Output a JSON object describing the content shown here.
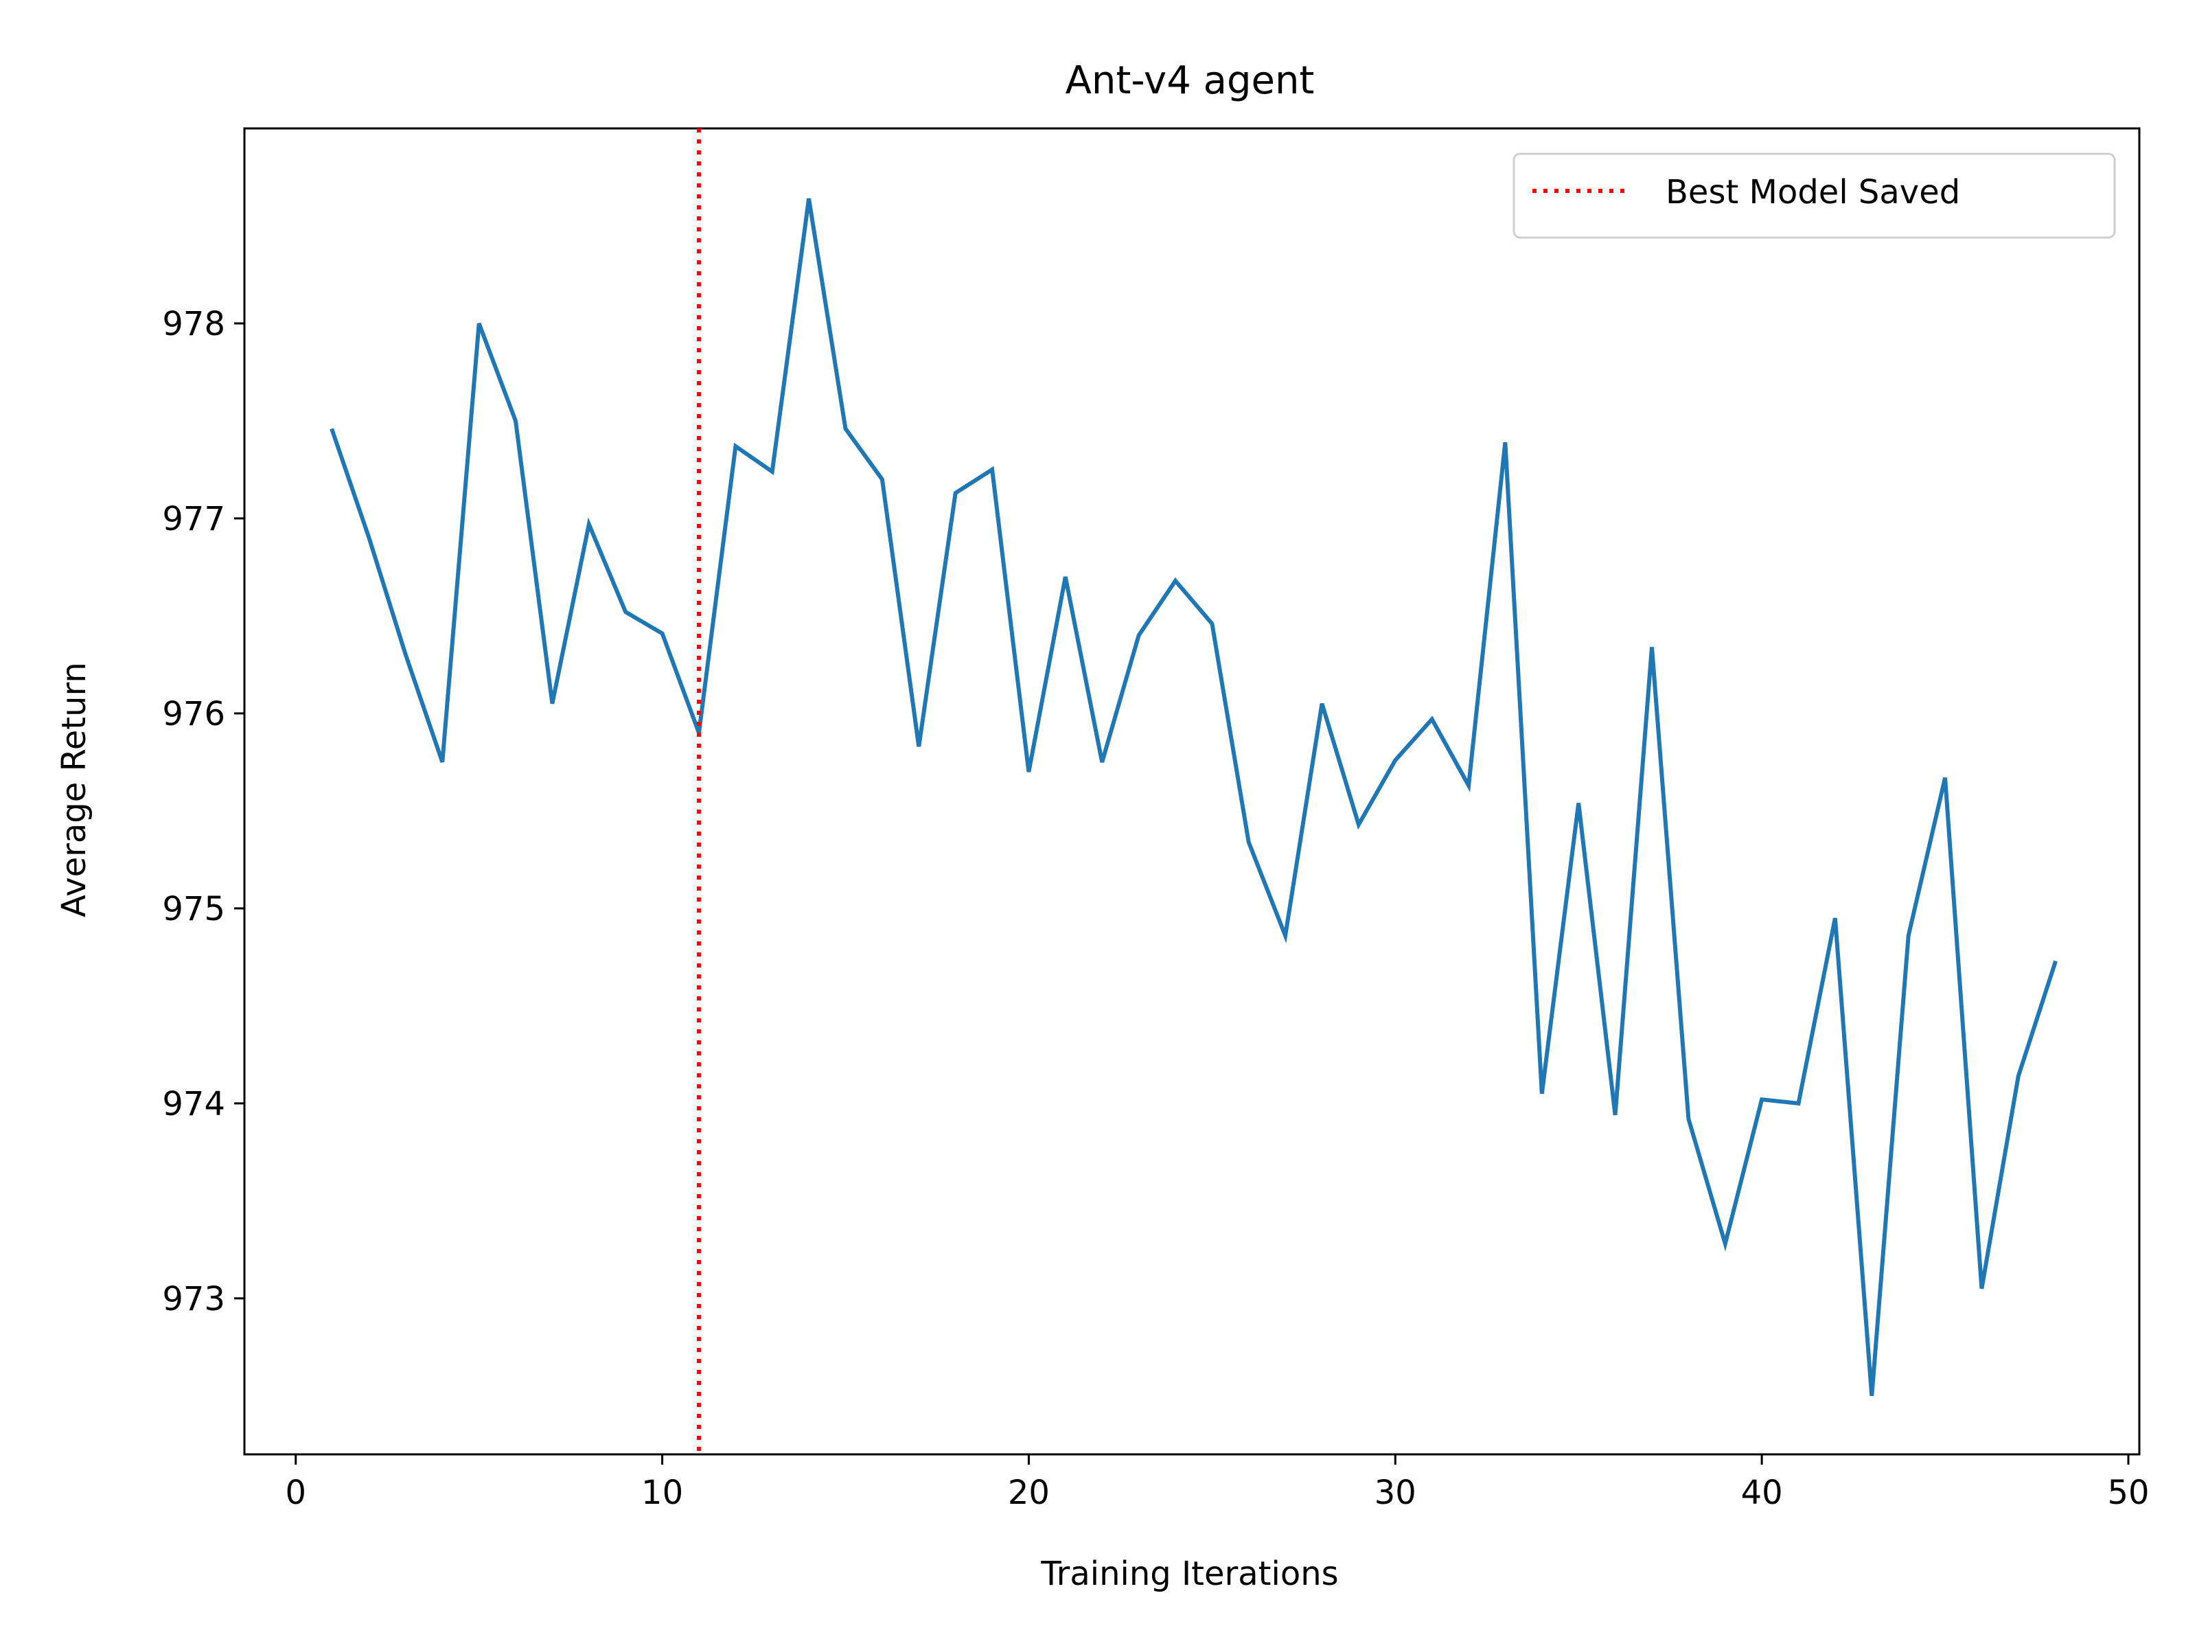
{
  "chart_data": {
    "type": "line",
    "title": "Ant-v4 agent",
    "xlabel": "Training Iterations",
    "ylabel": "Average Return",
    "xlim": [
      -1.4,
      50.3
    ],
    "ylim": [
      972.2,
      979.0
    ],
    "xticks": [
      0,
      10,
      20,
      30,
      40,
      50
    ],
    "yticks": [
      973,
      974,
      975,
      976,
      977,
      978
    ],
    "grid": false,
    "legend_position": "top-right",
    "series": [
      {
        "color": "#1f77b4",
        "x": [
          1,
          2,
          3,
          4,
          5,
          6,
          7,
          8,
          9,
          10,
          11,
          12,
          13,
          14,
          15,
          16,
          17,
          18,
          19,
          20,
          21,
          22,
          23,
          24,
          25,
          26,
          27,
          28,
          29,
          30,
          31,
          32,
          33,
          34,
          35,
          36,
          37,
          38,
          39,
          40,
          41,
          42,
          43,
          44,
          45,
          46,
          47,
          48
        ],
        "values": [
          977.45,
          976.9,
          976.3,
          975.75,
          978.0,
          977.5,
          976.05,
          976.97,
          976.52,
          976.41,
          975.9,
          977.37,
          977.24,
          978.64,
          977.46,
          977.2,
          975.83,
          977.13,
          977.25,
          975.7,
          976.7,
          975.75,
          976.4,
          976.68,
          976.46,
          975.34,
          974.86,
          976.05,
          975.43,
          975.76,
          975.97,
          975.63,
          977.39,
          974.05,
          975.54,
          973.94,
          976.34,
          973.92,
          973.28,
          974.02,
          974.0,
          974.95,
          972.5,
          974.86,
          975.67,
          973.05,
          974.14,
          974.72
        ]
      }
    ],
    "annotations": [
      {
        "type": "vline",
        "x": 11,
        "color": "#ff0000",
        "style": "dotted",
        "label": "Best Model Saved"
      }
    ]
  }
}
